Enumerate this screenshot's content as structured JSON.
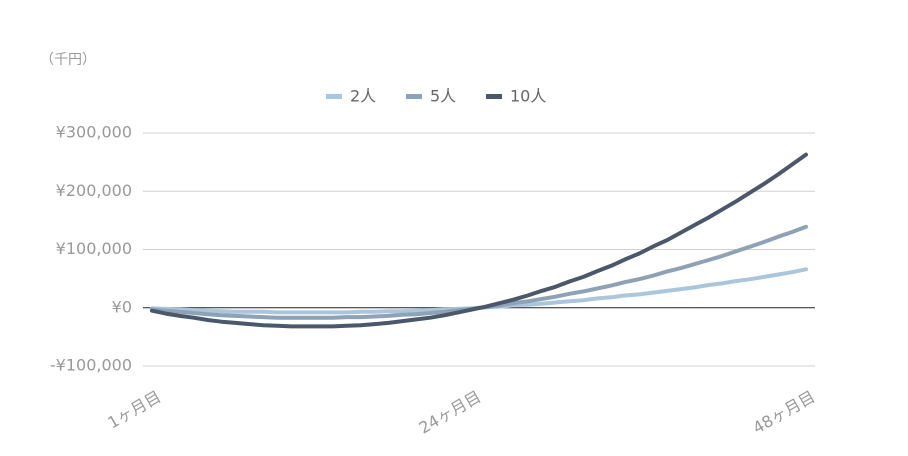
{
  "chart_data": {
    "type": "line",
    "unit_label": "（千円）",
    "categories": [
      "1ヶ月目",
      null,
      null,
      null,
      null,
      null,
      null,
      null,
      null,
      null,
      null,
      null,
      null,
      null,
      null,
      null,
      null,
      null,
      null,
      null,
      null,
      null,
      null,
      "24ヶ月目",
      null,
      null,
      null,
      null,
      null,
      null,
      null,
      null,
      null,
      null,
      null,
      null,
      null,
      null,
      null,
      null,
      null,
      null,
      null,
      null,
      null,
      null,
      null,
      "48ヶ月目"
    ],
    "series": [
      {
        "name": "2人",
        "color": "#a9c6dc",
        "values": [
          -1000,
          -2000,
          -3000,
          -4000,
          -5000,
          -6000,
          -7000,
          -7000,
          -7000,
          -8000,
          -8000,
          -8000,
          -8000,
          -8000,
          -8000,
          -7000,
          -7000,
          -6000,
          -6000,
          -5000,
          -4000,
          -3000,
          -2000,
          -1000,
          1000,
          2000,
          4000,
          5000,
          7000,
          9000,
          11000,
          13000,
          16000,
          18000,
          21000,
          23000,
          26000,
          29000,
          32000,
          35000,
          39000,
          42000,
          46000,
          49000,
          53000,
          57000,
          61000,
          66000
        ]
      },
      {
        "name": "5人",
        "color": "#8ea2b7",
        "values": [
          -3000,
          -5000,
          -7000,
          -9000,
          -11000,
          -13000,
          -14000,
          -15000,
          -16000,
          -17000,
          -17000,
          -17000,
          -17000,
          -17000,
          -16000,
          -16000,
          -15000,
          -14000,
          -12000,
          -11000,
          -9000,
          -7000,
          -4000,
          -2000,
          1000,
          4000,
          8000,
          11000,
          15000,
          19000,
          24000,
          28000,
          33000,
          38000,
          44000,
          49000,
          55000,
          62000,
          68000,
          75000,
          82000,
          89000,
          97000,
          105000,
          113000,
          122000,
          130000,
          139000
        ]
      },
      {
        "name": "10人",
        "color": "#4b576a",
        "values": [
          -5000,
          -10000,
          -14000,
          -17000,
          -21000,
          -24000,
          -26000,
          -28000,
          -30000,
          -31000,
          -32000,
          -32000,
          -32000,
          -32000,
          -31000,
          -30000,
          -28000,
          -26000,
          -23000,
          -20000,
          -17000,
          -13000,
          -8000,
          -3000,
          2000,
          8000,
          14000,
          21000,
          29000,
          36000,
          45000,
          53000,
          63000,
          72000,
          83000,
          93000,
          105000,
          116000,
          129000,
          142000,
          155000,
          169000,
          183000,
          198000,
          213000,
          229000,
          246000,
          263000
        ]
      }
    ],
    "ylim": [
      -100000,
      300000
    ],
    "yticks": [
      {
        "value": -100000,
        "label": "-¥100,000"
      },
      {
        "value": 0,
        "label": "¥0"
      },
      {
        "value": 100000,
        "label": "¥100,000"
      },
      {
        "value": 200000,
        "label": "¥200,000"
      },
      {
        "value": 300000,
        "label": "¥300,000"
      }
    ],
    "grid": true,
    "legend": "top"
  }
}
